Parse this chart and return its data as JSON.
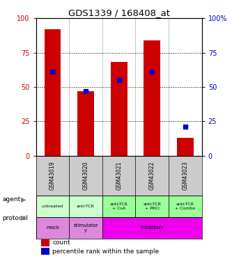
{
  "title": "GDS1339 / 168408_at",
  "samples": [
    "GSM43019",
    "GSM43020",
    "GSM43021",
    "GSM43022",
    "GSM43023"
  ],
  "bar_values": [
    92,
    47,
    68,
    84,
    13
  ],
  "percentile_values": [
    61,
    47,
    55,
    61,
    21
  ],
  "bar_color": "#cc0000",
  "percentile_color": "#0000cc",
  "ylim": [
    0,
    100
  ],
  "yticks": [
    0,
    25,
    50,
    75,
    100
  ],
  "left_tick_color": "#cc0000",
  "right_tick_color": "#0000cc",
  "agent_labels": [
    "untreated",
    "anti-TCR",
    "anti-TCR\n+ CsA",
    "anti-TCR\n+ PKCi",
    "anti-TCR\n+ Combo"
  ],
  "agent_bg_colors": [
    "#ccffcc",
    "#ccffcc",
    "#99ff99",
    "#99ff99",
    "#99ff99"
  ],
  "protocol_spans": [
    {
      "label": "mock",
      "cols": [
        0,
        1
      ],
      "color": "#dd88dd"
    },
    {
      "label": "stimulator\ny",
      "cols": [
        1,
        2
      ],
      "color": "#dd88dd"
    },
    {
      "label": "inhibitory",
      "cols": [
        2,
        5
      ],
      "color": "#ee00ee"
    }
  ],
  "sample_bg": "#cccccc",
  "legend_count_color": "#cc0000",
  "legend_pct_color": "#0000cc"
}
